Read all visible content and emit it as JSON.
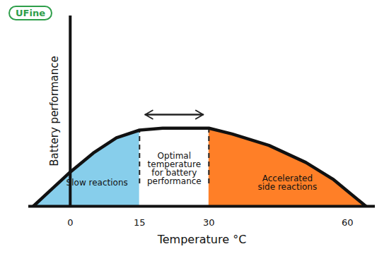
{
  "chart_data": {
    "type": "area",
    "logo": "UFine",
    "xlabel": "Temperature °C",
    "ylabel": "Battery performance",
    "xlim": [
      -9,
      66
    ],
    "xticks": [
      0,
      15,
      30,
      60
    ],
    "ylim": [
      0,
      100
    ],
    "tick_labels": "x",
    "series": [
      {
        "name": "Slow reactions",
        "color": "#87ceeb",
        "x": [
          -8,
          -4,
          0,
          5,
          10,
          15
        ],
        "values": [
          0,
          9,
          18,
          28,
          36,
          40
        ]
      },
      {
        "name": "Optimal temperature for battery performance",
        "color": "#ffffff",
        "x": [
          15,
          20,
          25,
          30
        ],
        "values": [
          40,
          41,
          41,
          41
        ]
      },
      {
        "name": "Accelerated side reactions",
        "color": "#ff7f27",
        "x": [
          30,
          35,
          43,
          51,
          57,
          60,
          64
        ],
        "values": [
          41,
          38,
          32,
          23,
          14,
          8,
          0
        ]
      }
    ]
  }
}
